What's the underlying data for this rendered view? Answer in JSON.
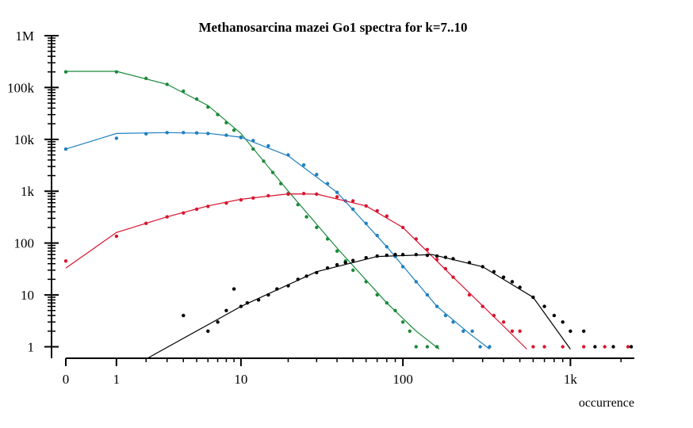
{
  "chart_data": {
    "type": "scatter",
    "title": "Methanosarcina mazei Go1 spectra for k=7..10",
    "xlabel": "occurrence",
    "ylabel": "",
    "x_scale": "log(x+1)",
    "y_scale": "log",
    "xlim": [
      0,
      2400
    ],
    "ylim": [
      0.6,
      1000000
    ],
    "x_ticks": [
      {
        "value": 0,
        "label": "0"
      },
      {
        "value": 1,
        "label": "1"
      },
      {
        "value": 10,
        "label": "10"
      },
      {
        "value": 100,
        "label": "100"
      },
      {
        "value": 1000,
        "label": "1k"
      }
    ],
    "y_ticks": [
      {
        "value": 1,
        "label": "1"
      },
      {
        "value": 10,
        "label": "10"
      },
      {
        "value": 100,
        "label": "100"
      },
      {
        "value": 1000,
        "label": "1k"
      },
      {
        "value": 10000,
        "label": "10k"
      },
      {
        "value": 100000,
        "label": "100k"
      },
      {
        "value": 1000000,
        "label": "1M"
      }
    ],
    "grid": false,
    "legend": "none",
    "series": [
      {
        "color": "#1a8a3a",
        "points": [
          [
            0,
            200000
          ],
          [
            1,
            200000
          ],
          [
            2,
            150000
          ],
          [
            3,
            115000
          ],
          [
            4,
            85000
          ],
          [
            5,
            60000
          ],
          [
            6,
            42000
          ],
          [
            7,
            30000
          ],
          [
            8,
            21000
          ],
          [
            9,
            15000
          ],
          [
            10,
            11000
          ],
          [
            12,
            6500
          ],
          [
            14,
            3800
          ],
          [
            16,
            2300
          ],
          [
            18,
            1400
          ],
          [
            20,
            900
          ],
          [
            23,
            550
          ],
          [
            26,
            320
          ],
          [
            30,
            200
          ],
          [
            35,
            120
          ],
          [
            40,
            70
          ],
          [
            45,
            45
          ],
          [
            50,
            30
          ],
          [
            60,
            18
          ],
          [
            70,
            10
          ],
          [
            80,
            7
          ],
          [
            90,
            5
          ],
          [
            100,
            3
          ],
          [
            110,
            2
          ],
          [
            120,
            1
          ],
          [
            140,
            1
          ],
          [
            160,
            1
          ]
        ],
        "fit": [
          [
            0,
            205000
          ],
          [
            1,
            205000
          ],
          [
            3,
            115000
          ],
          [
            6,
            45000
          ],
          [
            10,
            13000
          ],
          [
            20,
            1000
          ],
          [
            40,
            80
          ],
          [
            80,
            7
          ],
          [
            120,
            2
          ],
          [
            165,
            0.9
          ]
        ]
      },
      {
        "color": "#1f7fbf",
        "points": [
          [
            0,
            6500
          ],
          [
            1,
            10500
          ],
          [
            2,
            12800
          ],
          [
            3,
            13500
          ],
          [
            4,
            13500
          ],
          [
            5,
            13300
          ],
          [
            6,
            13000
          ],
          [
            8,
            12000
          ],
          [
            10,
            10800
          ],
          [
            12,
            9500
          ],
          [
            15,
            7500
          ],
          [
            20,
            5000
          ],
          [
            25,
            3200
          ],
          [
            30,
            2100
          ],
          [
            35,
            1400
          ],
          [
            40,
            950
          ],
          [
            45,
            650
          ],
          [
            50,
            450
          ],
          [
            60,
            240
          ],
          [
            70,
            140
          ],
          [
            80,
            85
          ],
          [
            90,
            55
          ],
          [
            100,
            35
          ],
          [
            120,
            18
          ],
          [
            140,
            10
          ],
          [
            160,
            6
          ],
          [
            180,
            4
          ],
          [
            200,
            3
          ],
          [
            230,
            2
          ],
          [
            260,
            2
          ],
          [
            290,
            1
          ],
          [
            330,
            1
          ]
        ],
        "fit": [
          [
            0,
            6500
          ],
          [
            1,
            13000
          ],
          [
            3,
            13500
          ],
          [
            6,
            13100
          ],
          [
            10,
            11000
          ],
          [
            20,
            4800
          ],
          [
            40,
            950
          ],
          [
            80,
            85
          ],
          [
            160,
            6
          ],
          [
            250,
            1.8
          ],
          [
            330,
            0.9
          ]
        ]
      },
      {
        "color": "#d8152f",
        "points": [
          [
            0,
            45
          ],
          [
            1,
            135
          ],
          [
            2,
            240
          ],
          [
            3,
            320
          ],
          [
            4,
            380
          ],
          [
            5,
            450
          ],
          [
            6,
            510
          ],
          [
            8,
            590
          ],
          [
            10,
            680
          ],
          [
            12,
            740
          ],
          [
            15,
            820
          ],
          [
            20,
            880
          ],
          [
            25,
            900
          ],
          [
            30,
            880
          ],
          [
            40,
            780
          ],
          [
            50,
            650
          ],
          [
            60,
            520
          ],
          [
            70,
            420
          ],
          [
            80,
            330
          ],
          [
            100,
            200
          ],
          [
            120,
            120
          ],
          [
            140,
            75
          ],
          [
            160,
            48
          ],
          [
            180,
            32
          ],
          [
            200,
            22
          ],
          [
            250,
            10
          ],
          [
            300,
            6
          ],
          [
            350,
            4
          ],
          [
            400,
            3
          ],
          [
            450,
            2
          ],
          [
            500,
            2
          ],
          [
            600,
            1
          ],
          [
            700,
            1
          ],
          [
            900,
            1
          ],
          [
            1200,
            1
          ],
          [
            1600,
            1
          ],
          [
            2200,
            1
          ]
        ],
        "fit": [
          [
            0,
            33
          ],
          [
            1,
            160
          ],
          [
            3,
            320
          ],
          [
            6,
            520
          ],
          [
            10,
            700
          ],
          [
            20,
            890
          ],
          [
            30,
            880
          ],
          [
            60,
            520
          ],
          [
            100,
            200
          ],
          [
            200,
            22
          ],
          [
            400,
            2.5
          ],
          [
            550,
            0.9
          ]
        ]
      },
      {
        "color": "#000000",
        "points": [
          [
            4,
            4
          ],
          [
            6,
            2
          ],
          [
            7,
            3
          ],
          [
            8,
            5
          ],
          [
            9,
            13
          ],
          [
            10,
            6
          ],
          [
            11,
            7
          ],
          [
            13,
            8
          ],
          [
            15,
            10
          ],
          [
            17,
            13
          ],
          [
            20,
            15
          ],
          [
            23,
            20
          ],
          [
            26,
            23
          ],
          [
            30,
            27
          ],
          [
            35,
            33
          ],
          [
            40,
            38
          ],
          [
            45,
            42
          ],
          [
            50,
            46
          ],
          [
            60,
            52
          ],
          [
            70,
            56
          ],
          [
            80,
            58
          ],
          [
            90,
            60
          ],
          [
            100,
            60
          ],
          [
            120,
            60
          ],
          [
            140,
            58
          ],
          [
            160,
            56
          ],
          [
            180,
            53
          ],
          [
            200,
            50
          ],
          [
            250,
            42
          ],
          [
            300,
            35
          ],
          [
            350,
            28
          ],
          [
            400,
            22
          ],
          [
            450,
            18
          ],
          [
            500,
            14
          ],
          [
            600,
            9
          ],
          [
            700,
            6
          ],
          [
            800,
            4
          ],
          [
            900,
            3
          ],
          [
            1000,
            2
          ],
          [
            1200,
            2
          ],
          [
            1400,
            1
          ],
          [
            1800,
            1
          ],
          [
            2300,
            1
          ]
        ],
        "fit": [
          [
            2,
            0.58
          ],
          [
            10,
            6
          ],
          [
            30,
            28
          ],
          [
            70,
            55
          ],
          [
            150,
            60
          ],
          [
            300,
            35
          ],
          [
            600,
            9
          ],
          [
            1000,
            0.9
          ]
        ]
      }
    ]
  }
}
